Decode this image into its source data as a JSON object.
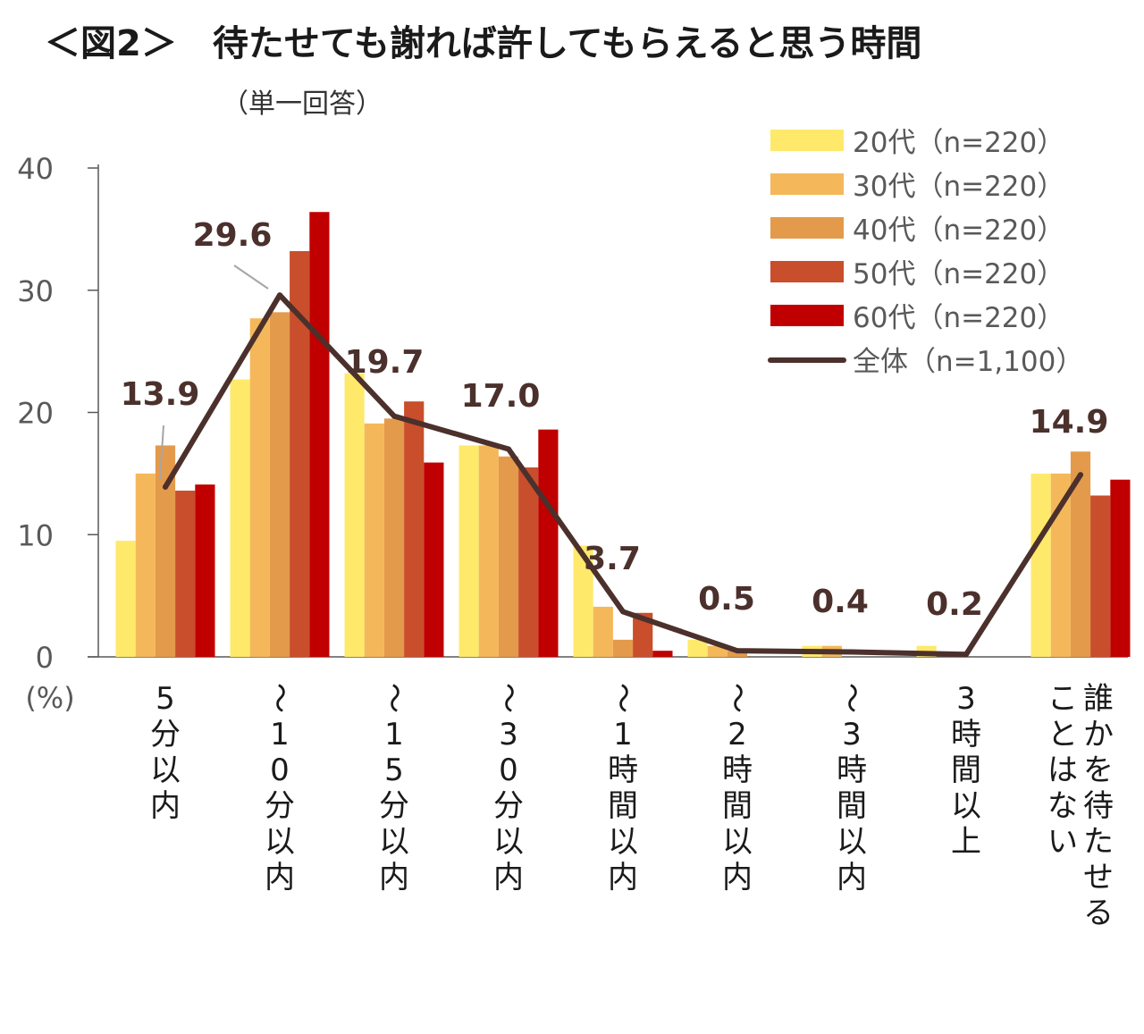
{
  "title": "＜図2＞　待たせても謝れば許してもらえると思う時間",
  "subtitle": "（単一回答）",
  "colors": {
    "s20": "#FFE96B",
    "s30": "#F4B85A",
    "s40": "#E49A4B",
    "s50": "#C94E2C",
    "s60": "#C00000",
    "total": "#4B302C",
    "axis": "#595959",
    "label": "#4B302C"
  },
  "chart_data": {
    "type": "bar",
    "ylim": [
      0,
      40
    ],
    "yticks": [
      0,
      10,
      20,
      30,
      40
    ],
    "yunit": "(%)",
    "categories": [
      "5分以内",
      "〜10分以内",
      "〜15分以内",
      "〜30分以内",
      "〜1時間以内",
      "〜2時間以内",
      "〜3時間以内",
      "3時間以上",
      "誰かを待たせることはない"
    ],
    "category_lines": [
      [
        "5分以内"
      ],
      [
        "〜10分以内"
      ],
      [
        "〜15分以内"
      ],
      [
        "〜30分以内"
      ],
      [
        "〜1時間以内"
      ],
      [
        "〜2時間以内"
      ],
      [
        "〜3時間以内"
      ],
      [
        "3時間以上"
      ],
      [
        "誰かを待たせる",
        "ことはない"
      ]
    ],
    "series": [
      {
        "name": "20代（n=220）",
        "color_key": "s20",
        "values": [
          9.5,
          22.7,
          23.2,
          17.3,
          9.1,
          1.4,
          0.9,
          0.9,
          15.0
        ]
      },
      {
        "name": "30代（n=220）",
        "color_key": "s30",
        "values": [
          15.0,
          27.7,
          19.1,
          17.3,
          4.1,
          0.9,
          0.9,
          0.0,
          15.0
        ]
      },
      {
        "name": "40代（n=220）",
        "color_key": "s40",
        "values": [
          17.3,
          28.2,
          19.5,
          16.4,
          1.4,
          0.5,
          0.0,
          0.0,
          16.8
        ]
      },
      {
        "name": "50代（n=220）",
        "color_key": "s50",
        "values": [
          13.6,
          33.2,
          20.9,
          15.5,
          3.6,
          0.0,
          0.0,
          0.0,
          13.2
        ]
      },
      {
        "name": "60代（n=220）",
        "color_key": "s60",
        "values": [
          14.1,
          36.4,
          15.9,
          18.6,
          0.5,
          0.0,
          0.0,
          0.0,
          14.5
        ]
      }
    ],
    "line": {
      "name": "全体（n=1,100）",
      "color_key": "total",
      "values": [
        13.9,
        29.6,
        19.7,
        17.0,
        3.7,
        0.5,
        0.4,
        0.2,
        14.9
      ],
      "labels": [
        "13.9",
        "29.6",
        "19.7",
        "17.0",
        "3.7",
        "0.5",
        "0.4",
        "0.2",
        "14.9"
      ]
    },
    "legend_position": "top-right",
    "grid": false
  }
}
